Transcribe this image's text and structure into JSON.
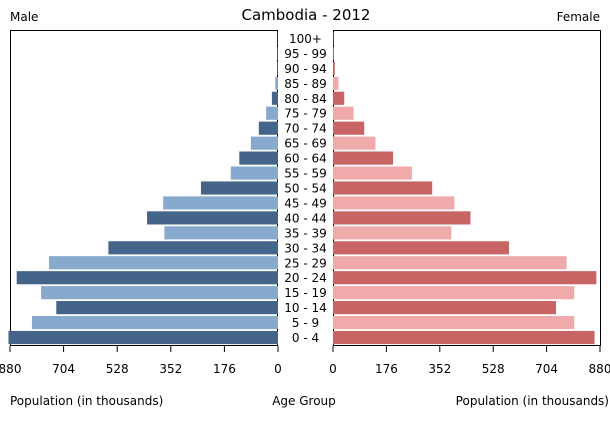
{
  "chart_data": {
    "type": "bar",
    "title": "Cambodia - 2012",
    "left_label": "Male",
    "right_label": "Female",
    "xlabel_left": "Population (in thousands)",
    "xlabel_center": "Age Group",
    "xlabel_right": "Population (in thousands)",
    "categories": [
      "0 - 4",
      "5 - 9",
      "10 - 14",
      "15 - 19",
      "20 - 24",
      "25 - 29",
      "30 - 34",
      "35 - 39",
      "40 - 44",
      "45 - 49",
      "50 - 54",
      "55 - 59",
      "60 - 64",
      "65 - 69",
      "70 - 74",
      "75 - 79",
      "80 - 84",
      "85 - 89",
      "90 - 94",
      "95 - 99",
      "100+"
    ],
    "xlim": [
      0,
      880
    ],
    "ticks": [
      0,
      176,
      352,
      528,
      704,
      880
    ],
    "grid": false,
    "series": [
      {
        "name": "Male",
        "values": [
          885,
          808,
          728,
          778,
          858,
          752,
          557,
          373,
          430,
          377,
          253,
          155,
          127,
          89,
          63,
          39,
          20,
          9,
          3,
          1,
          0.3
        ]
      },
      {
        "name": "Female",
        "values": [
          862,
          795,
          735,
          795,
          868,
          770,
          580,
          390,
          453,
          400,
          327,
          260,
          198,
          140,
          103,
          68,
          37,
          18,
          6,
          2,
          0.5
        ]
      }
    ],
    "colors": {
      "male_dark": "#44648a",
      "male_light": "#87a9ce",
      "female_dark": "#c96465",
      "female_light": "#f0aaaa"
    }
  }
}
